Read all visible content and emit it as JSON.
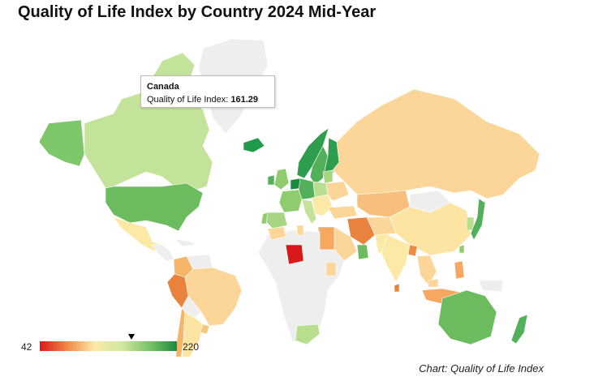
{
  "title": "Quality of Life Index by Country 2024 Mid-Year",
  "tooltip": {
    "country": "Canada",
    "label": "Quality of Life Index:",
    "value": "161.29"
  },
  "legend": {
    "min": "42",
    "max": "220",
    "marker_value": 161.29,
    "scale_colors": [
      "#d7191c",
      "#f08a45",
      "#fde9a6",
      "#cfe8a0",
      "#79c36a",
      "#1a8a3c"
    ]
  },
  "credit": "Chart: Quality of Life Index",
  "colors": {
    "no_data": "#eeeeee",
    "ocean": "#ffffff"
  }
}
